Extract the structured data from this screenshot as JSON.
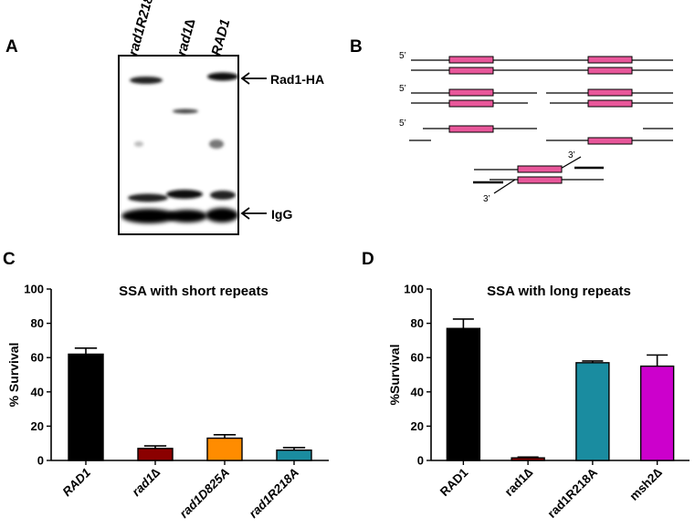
{
  "panels": {
    "a": {
      "letter": "A",
      "lanes": [
        "rad1R218A",
        "rad1∆",
        "RAD1"
      ],
      "band_labels": [
        "Rad1-HA",
        "IgG"
      ]
    },
    "b": {
      "letter": "B",
      "end_labels": [
        "5’",
        "5’",
        "5’",
        "3’",
        "3’"
      ]
    },
    "c": {
      "letter": "C"
    },
    "d": {
      "letter": "D"
    }
  },
  "colors": {
    "black": "#000000",
    "dark_red": "#8b0000",
    "orange": "#ff8c00",
    "teal": "#1a8ca0",
    "magenta": "#cc00cc",
    "repeat_pink": "#e8579a"
  },
  "chart_data": [
    {
      "type": "bar",
      "title": "SSA with short repeats",
      "xlabel": "",
      "ylabel": "% Survival",
      "ylim": [
        0,
        100
      ],
      "yticks": [
        0,
        20,
        40,
        60,
        80,
        100
      ],
      "categories": [
        "RAD1",
        "rad1∆",
        "rad1D825A",
        "rad1R218A"
      ],
      "values": [
        62,
        7,
        13,
        6
      ],
      "errors": [
        3.5,
        1.5,
        2.0,
        1.5
      ],
      "colors": [
        "#000000",
        "#8b0000",
        "#ff8c00",
        "#1a8ca0"
      ],
      "italic_labels": true
    },
    {
      "type": "bar",
      "title": "SSA with long repeats",
      "xlabel": "",
      "ylabel": "%Survival",
      "ylim": [
        0,
        100
      ],
      "yticks": [
        0,
        20,
        40,
        60,
        80,
        100
      ],
      "categories": [
        "RAD1",
        "rad1∆",
        "rad1R218A",
        "msh2∆"
      ],
      "values": [
        77,
        1.5,
        57,
        55
      ],
      "errors": [
        5.5,
        0.5,
        1.0,
        6.5
      ],
      "colors": [
        "#000000",
        "#8b0000",
        "#1a8ca0",
        "#cc00cc"
      ],
      "italic_labels": false
    }
  ]
}
